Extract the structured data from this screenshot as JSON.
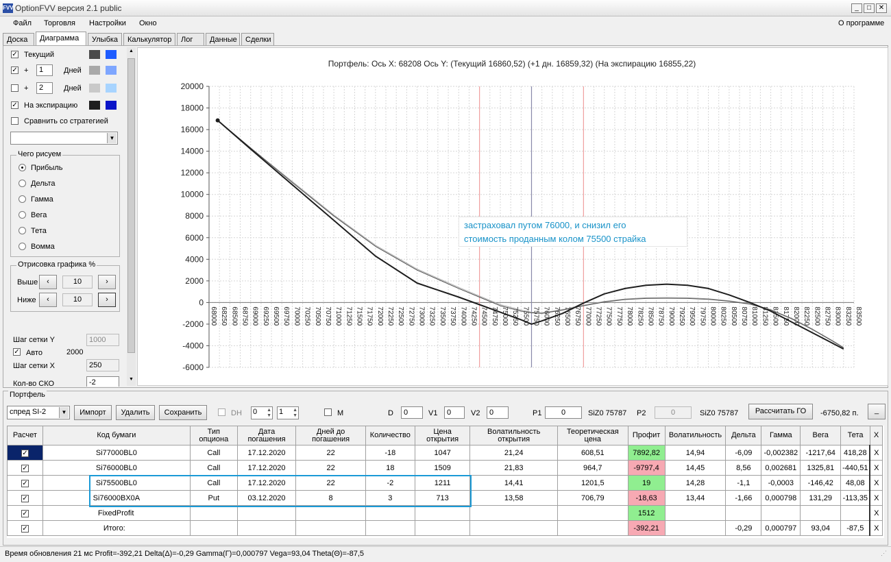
{
  "window": {
    "title": "OptionFVV версия 2.1 public",
    "icon": "FVV"
  },
  "menu": {
    "items": [
      "Файл",
      "Торговля",
      "Настройки",
      "Окно"
    ],
    "about": "О программе"
  },
  "tabs": [
    "Доска",
    "Диаграмма",
    "Улыбка",
    "Калькулятор",
    "Лог",
    "Данные",
    "Сделки"
  ],
  "left": {
    "current_label": "Текущий",
    "plus_label": "+",
    "days_label": "Дней",
    "plus1_value": "1",
    "plus2_value": "2",
    "expiry_label": "На экспирацию",
    "compare_label": "Сравнить со стратегией",
    "draw_group": "Чего рисуем",
    "draw_options": [
      "Прибыль",
      "Дельта",
      "Гамма",
      "Вега",
      "Тета",
      "Вомма"
    ],
    "render_group": "Отрисовка графика %",
    "above_label": "Выше",
    "below_label": "Ниже",
    "above_value": "10",
    "below_value": "10",
    "grid_y_label": "Шаг сетки Y",
    "grid_y_value": "1000",
    "auto_label": "Авто",
    "auto_value": "2000",
    "grid_x_label": "Шаг сетки X",
    "grid_x_value": "250",
    "sko_label": "Кол-во СКО",
    "sko_value": "-2",
    "colors": {
      "current_dark": "#4b4b4b",
      "current_light": "#1e5cff",
      "plus1_dark": "#a9a9a9",
      "plus1_light": "#7ea6ff",
      "plus2_dark": "#c9c9c9",
      "plus2_light": "#a8d4ff",
      "exp_dark": "#1e1e1e",
      "exp_light": "#0a14c8"
    }
  },
  "chart_data": {
    "type": "line",
    "title": "Портфель: Ось X: 68208 Ось Y:  (Текущий 16860,52)  (+1 дн. 16859,32)  (На экспирацию 16855,22)",
    "annotation": [
      "застраховал путом 76000, и снизил его",
      "стоимость проданным колом 75500 страйка"
    ],
    "xlim": [
      68000,
      83500
    ],
    "ylim": [
      -6000,
      20000
    ],
    "x_ticks": [
      68000,
      68250,
      68500,
      68750,
      69000,
      69250,
      69500,
      69750,
      70000,
      70250,
      70500,
      70750,
      71000,
      71250,
      71500,
      71750,
      72000,
      72250,
      72500,
      72750,
      73000,
      73250,
      73500,
      73750,
      74000,
      74250,
      74500,
      74750,
      75000,
      75250,
      75500,
      75750,
      76000,
      76250,
      76500,
      76750,
      77000,
      77250,
      77500,
      77750,
      78000,
      78250,
      78500,
      78750,
      79000,
      79250,
      79500,
      79750,
      80000,
      80250,
      80500,
      80750,
      81000,
      81250,
      81500,
      81750,
      82000,
      82250,
      82500,
      82750,
      83000,
      83250,
      83500
    ],
    "y_ticks": [
      20000,
      18000,
      16000,
      14000,
      12000,
      10000,
      8000,
      6000,
      4000,
      2000,
      0,
      -2000,
      -4000,
      -6000
    ],
    "vlines": [
      {
        "x": 74500,
        "color": "#f0a0a0"
      },
      {
        "x": 75750,
        "color": "#8888aa"
      },
      {
        "x": 77000,
        "color": "#f0a0a0"
      }
    ],
    "series": [
      {
        "color": "#1e1e1e",
        "width": 2,
        "x": [
          68208,
          69000,
          70000,
          71000,
          72000,
          73000,
          74000,
          74500,
          75000,
          75500,
          75750,
          76000,
          76500,
          77000,
          77500,
          78000,
          78500,
          79000,
          79500,
          80000,
          80500,
          81000,
          81500,
          82000,
          82500,
          83000,
          83250
        ],
        "y": [
          16855,
          14200,
          10900,
          7600,
          4300,
          1800,
          500,
          -200,
          -900,
          -1600,
          -2000,
          -1700,
          -1000,
          -50,
          800,
          1300,
          1600,
          1700,
          1600,
          1300,
          700,
          0,
          -800,
          -1800,
          -2800,
          -3800,
          -4300
        ]
      },
      {
        "color": "#4b4b4b",
        "width": 1,
        "x": [
          68208,
          69000,
          70000,
          71000,
          72000,
          73000,
          74000,
          74500,
          75000,
          75500,
          75750,
          76000,
          76500,
          77000,
          77500,
          78000,
          78500,
          79000,
          79500,
          80000,
          80500,
          81000,
          81500,
          82000,
          82500,
          83000,
          83250
        ],
        "y": [
          16860,
          14300,
          11100,
          8000,
          5200,
          3000,
          1300,
          500,
          -300,
          -800,
          -950,
          -1000,
          -700,
          -300,
          50,
          280,
          380,
          400,
          380,
          300,
          120,
          -150,
          -700,
          -1500,
          -2500,
          -3600,
          -4200
        ]
      },
      {
        "color": "#a9a9a9",
        "width": 1,
        "x": [
          68208,
          69000,
          70000,
          71000,
          72000,
          73000,
          74000,
          74500,
          75000,
          75500,
          75750,
          76000,
          76500,
          77000,
          77500,
          78000,
          78500,
          79000,
          79500,
          80000,
          80500,
          81000,
          81500,
          82000,
          82500,
          83000,
          83250
        ],
        "y": [
          16859,
          14300,
          11200,
          8100,
          5300,
          3100,
          1400,
          600,
          -200,
          -700,
          -900,
          -950,
          -650,
          -250,
          100,
          330,
          440,
          460,
          440,
          350,
          160,
          -110,
          -650,
          -1450,
          -2450,
          -3550,
          -4150
        ]
      }
    ]
  },
  "portfolio": {
    "label": "Портфель",
    "select": "спред SI-2",
    "import": "Импорт",
    "delete": "Удалить",
    "save": "Сохранить",
    "dh": "DH",
    "spin1": "0",
    "spin2": "1",
    "m": "M",
    "d_label": "D",
    "d_value": "0",
    "v1_label": "V1",
    "v1_value": "0",
    "v2_label": "V2",
    "v2_value": "0",
    "p1_label": "P1",
    "p1_value": "0",
    "sizo1": "SiZ0 75787",
    "p2_label": "P2",
    "p2_value": "0",
    "sizo2": "SiZ0 75787",
    "calc_go": "Рассчитать ГО",
    "go_value": "-6750,82 п.",
    "minimize": "_",
    "headers": [
      "Расчет",
      "Код бумаги",
      "Тип опциона",
      "Дата погашения",
      "Дней до погашения",
      "Количество",
      "Цена открытия",
      "Волатильность открытия",
      "Теоретическая цена",
      "Профит",
      "Волатильность",
      "Дельта",
      "Гамма",
      "Вега",
      "Тета",
      "X"
    ],
    "rows": [
      [
        "Si77000BL0",
        "Call",
        "17.12.2020",
        "22",
        "-18",
        "1047",
        "21,24",
        "608,51",
        "7892,82",
        "14,94",
        "-6,09",
        "-0,002382",
        "-1217,64",
        "418,28"
      ],
      [
        "Si76000BL0",
        "Call",
        "17.12.2020",
        "22",
        "18",
        "1509",
        "21,83",
        "964,7",
        "-9797,4",
        "14,45",
        "8,56",
        "0,002681",
        "1325,81",
        "-440,51"
      ],
      [
        "Si75500BL0",
        "Call",
        "17.12.2020",
        "22",
        "-2",
        "1211",
        "14,41",
        "1201,5",
        "19",
        "14,28",
        "-1,1",
        "-0,0003",
        "-146,42",
        "48,08"
      ],
      [
        "Si76000BX0A",
        "Put",
        "03.12.2020",
        "8",
        "3",
        "713",
        "13,58",
        "706,79",
        "-18,63",
        "13,44",
        "-1,66",
        "0,000798",
        "131,29",
        "-113,35"
      ],
      [
        "FixedProfit",
        "",
        "",
        "",
        "",
        "",
        "",
        "",
        "1512",
        "",
        "",
        "",
        "",
        ""
      ],
      [
        "Итого:",
        "",
        "",
        "",
        "",
        "",
        "",
        "",
        "-392,21",
        "",
        "-0,29",
        "0,000797",
        "93,04",
        "-87,5"
      ]
    ],
    "profit_status": [
      "pos",
      "neg",
      "pos",
      "neg",
      "pos",
      "neg"
    ],
    "close_mark": "X"
  },
  "status": "Время обновления 21 мс  Profit=-392,21 Delta(Δ)=-0,29 Gamma(Г)=0,000797 Vega=93,04 Theta(Θ)=-87,5"
}
